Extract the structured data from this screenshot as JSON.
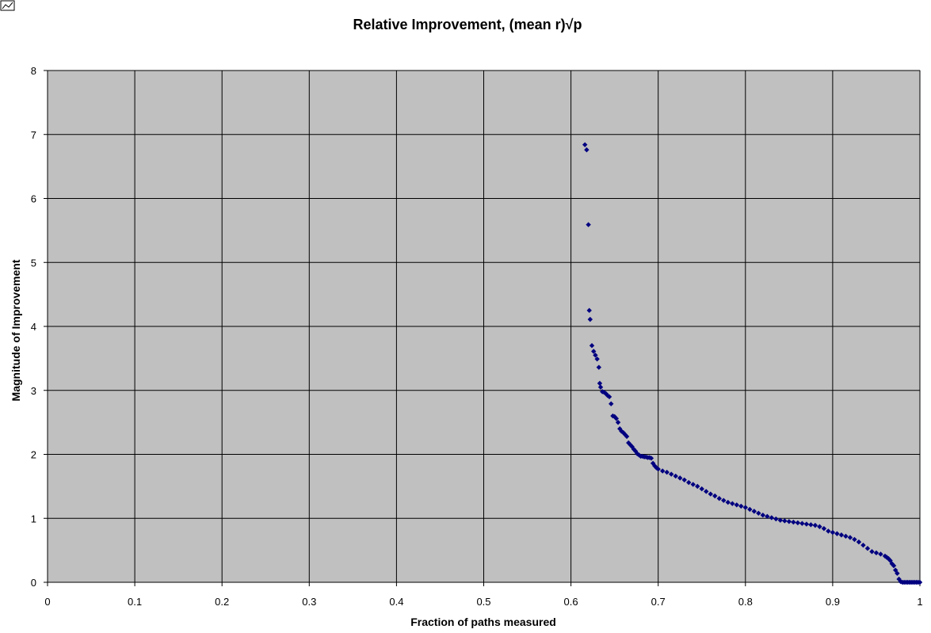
{
  "colors": {
    "plot_background": "#c0c0c0",
    "gridline": "#000000",
    "marker": "#000080"
  },
  "corner_icon": "chart-thumbnail-icon",
  "chart_data": {
    "type": "scatter",
    "title": "Relative Improvement, (mean r)√p",
    "xlabel": "Fraction of paths measured",
    "ylabel": "Magnitude of Improvement",
    "xlim": [
      0,
      1
    ],
    "ylim": [
      0,
      8
    ],
    "xticks": [
      "0",
      "0.1",
      "0.2",
      "0.3",
      "0.4",
      "0.5",
      "0.6",
      "0.7",
      "0.8",
      "0.9",
      "1"
    ],
    "yticks": [
      "0",
      "1",
      "2",
      "3",
      "4",
      "5",
      "6",
      "7",
      "8"
    ],
    "grid": true,
    "legend": "none",
    "marker": "diamond",
    "x": [
      0.616,
      0.618,
      0.62,
      0.621,
      0.622,
      0.624,
      0.626,
      0.628,
      0.63,
      0.632,
      0.633,
      0.634,
      0.636,
      0.638,
      0.64,
      0.642,
      0.644,
      0.646,
      0.648,
      0.65,
      0.652,
      0.654,
      0.656,
      0.658,
      0.66,
      0.662,
      0.664,
      0.666,
      0.668,
      0.67,
      0.672,
      0.674,
      0.676,
      0.678,
      0.68,
      0.682,
      0.684,
      0.686,
      0.688,
      0.69,
      0.692,
      0.694,
      0.696,
      0.698,
      0.7,
      0.705,
      0.71,
      0.715,
      0.72,
      0.725,
      0.73,
      0.735,
      0.74,
      0.745,
      0.75,
      0.755,
      0.76,
      0.765,
      0.77,
      0.775,
      0.78,
      0.785,
      0.79,
      0.795,
      0.8,
      0.805,
      0.81,
      0.815,
      0.82,
      0.825,
      0.83,
      0.835,
      0.84,
      0.845,
      0.85,
      0.855,
      0.86,
      0.865,
      0.87,
      0.875,
      0.88,
      0.885,
      0.89,
      0.895,
      0.9,
      0.905,
      0.91,
      0.915,
      0.92,
      0.925,
      0.93,
      0.935,
      0.94,
      0.945,
      0.95,
      0.955,
      0.96,
      0.962,
      0.964,
      0.966,
      0.968,
      0.97,
      0.972,
      0.974,
      0.976,
      0.978,
      0.98,
      0.982,
      0.984,
      0.986,
      0.988,
      0.99,
      0.992,
      0.994,
      0.996,
      0.998,
      1.0
    ],
    "y": [
      6.84,
      6.76,
      5.59,
      4.25,
      4.11,
      3.7,
      3.61,
      3.55,
      3.49,
      3.36,
      3.11,
      3.05,
      2.98,
      2.97,
      2.95,
      2.92,
      2.9,
      2.79,
      2.6,
      2.59,
      2.56,
      2.5,
      2.4,
      2.36,
      2.34,
      2.31,
      2.28,
      2.18,
      2.15,
      2.12,
      2.08,
      2.05,
      2.01,
      1.99,
      1.97,
      1.97,
      1.96,
      1.96,
      1.95,
      1.95,
      1.94,
      1.86,
      1.82,
      1.79,
      1.77,
      1.74,
      1.72,
      1.69,
      1.66,
      1.63,
      1.6,
      1.56,
      1.53,
      1.5,
      1.46,
      1.42,
      1.38,
      1.35,
      1.31,
      1.28,
      1.25,
      1.23,
      1.21,
      1.19,
      1.17,
      1.14,
      1.11,
      1.08,
      1.05,
      1.03,
      1.01,
      0.99,
      0.97,
      0.96,
      0.95,
      0.94,
      0.93,
      0.92,
      0.91,
      0.9,
      0.89,
      0.87,
      0.84,
      0.8,
      0.78,
      0.76,
      0.74,
      0.72,
      0.7,
      0.67,
      0.63,
      0.58,
      0.53,
      0.48,
      0.46,
      0.44,
      0.41,
      0.39,
      0.37,
      0.34,
      0.29,
      0.26,
      0.19,
      0.14,
      0.05,
      0.01,
      0.0,
      0.0,
      0.0,
      0.0,
      0.0,
      0.0,
      0.0,
      0.0,
      0.0,
      0.0,
      0.0
    ]
  }
}
